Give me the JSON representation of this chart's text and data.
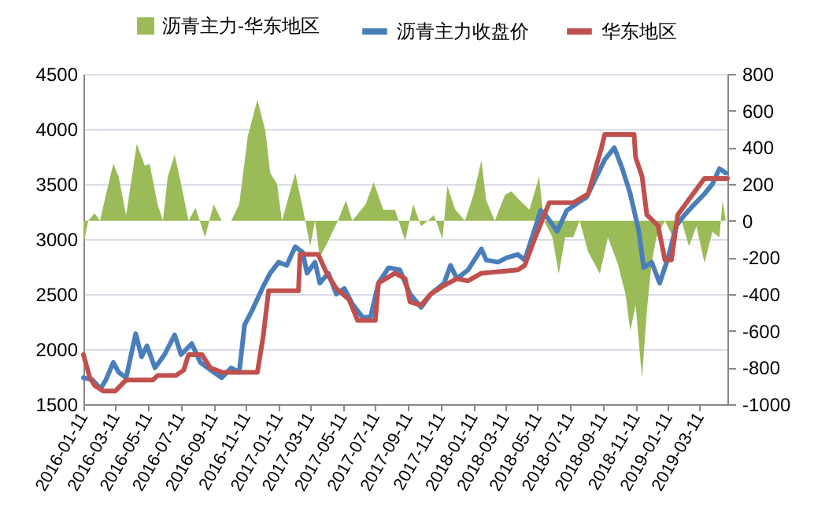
{
  "chart_data": {
    "type": "line",
    "legend": "top",
    "grid": "y",
    "xlim": [
      "2016-01-11",
      "2019-05-02"
    ],
    "xticks": [
      "2016-01-11",
      "2016-03-11",
      "2016-05-11",
      "2016-07-11",
      "2016-09-11",
      "2016-11-11",
      "2017-01-11",
      "2017-03-11",
      "2017-05-11",
      "2017-07-11",
      "2017-09-11",
      "2017-11-11",
      "2018-01-11",
      "2018-03-11",
      "2018-05-11",
      "2018-07-11",
      "2018-09-11",
      "2018-11-11",
      "2019-01-11",
      "2019-03-11"
    ],
    "ylim": [
      1500,
      4500
    ],
    "yticks": [
      1500,
      2000,
      2500,
      3000,
      3500,
      4000,
      4500
    ],
    "y2lim": [
      -1000,
      800
    ],
    "y2ticks": [
      -1000,
      -800,
      -600,
      -400,
      -200,
      0,
      200,
      400,
      600,
      800
    ],
    "series": [
      {
        "name": "沥青主力-华东地区",
        "type": "area",
        "axis": "y2",
        "color": "#9bbb59",
        "x": [
          "2016-01-11",
          "2016-01-20",
          "2016-02-01",
          "2016-02-11",
          "2016-02-22",
          "2016-03-07",
          "2016-03-17",
          "2016-03-31",
          "2016-04-20",
          "2016-05-05",
          "2016-05-14",
          "2016-05-29",
          "2016-06-08",
          "2016-06-17",
          "2016-06-30",
          "2016-07-12",
          "2016-07-26",
          "2016-08-08",
          "2016-08-26",
          "2016-09-11",
          "2016-09-26",
          "2016-10-14",
          "2016-10-29",
          "2016-11-14",
          "2016-12-02",
          "2016-12-17",
          "2016-12-26",
          "2017-01-08",
          "2017-01-17",
          "2017-02-11",
          "2017-02-25",
          "2017-03-11",
          "2017-03-20",
          "2017-03-29",
          "2017-04-14",
          "2017-05-02",
          "2017-05-17",
          "2017-05-29",
          "2017-06-23",
          "2017-07-08",
          "2017-07-26",
          "2017-08-17",
          "2017-09-05",
          "2017-09-20",
          "2017-10-05",
          "2017-10-29",
          "2017-11-14",
          "2017-11-23",
          "2017-12-08",
          "2017-12-26",
          "2018-01-11",
          "2018-01-26",
          "2018-02-04",
          "2018-02-20",
          "2018-03-11",
          "2018-03-23",
          "2018-04-08",
          "2018-04-26",
          "2018-05-14",
          "2018-05-23",
          "2018-06-08",
          "2018-06-20",
          "2018-07-02",
          "2018-07-17",
          "2018-07-29",
          "2018-08-14",
          "2018-09-05",
          "2018-09-20",
          "2018-10-08",
          "2018-10-23",
          "2018-11-01",
          "2018-11-11",
          "2018-11-23",
          "2018-12-02",
          "2018-12-11",
          "2018-12-20",
          "2019-01-05",
          "2019-01-20",
          "2019-02-05",
          "2019-02-19",
          "2019-03-05",
          "2019-03-20",
          "2019-04-04",
          "2019-04-17",
          "2019-04-23",
          "2019-04-29"
        ],
        "values": [
          -130,
          0,
          40,
          0,
          140,
          310,
          240,
          30,
          420,
          300,
          310,
          90,
          0,
          240,
          360,
          200,
          0,
          70,
          -90,
          90,
          0,
          0,
          90,
          460,
          660,
          490,
          260,
          200,
          0,
          260,
          70,
          -140,
          0,
          -200,
          -110,
          0,
          110,
          0,
          90,
          210,
          60,
          60,
          -110,
          90,
          -30,
          30,
          -100,
          190,
          60,
          0,
          140,
          330,
          110,
          0,
          140,
          160,
          110,
          60,
          240,
          0,
          -90,
          -290,
          -90,
          -90,
          0,
          -170,
          -290,
          -90,
          -230,
          -400,
          -600,
          -460,
          -860,
          -490,
          -230,
          -90,
          0,
          -90,
          0,
          -140,
          -30,
          -230,
          -60,
          -90,
          110,
          0
        ]
      },
      {
        "name": "沥青主力收盘价",
        "color": "#4a7ebb",
        "x": [
          "2016-01-11",
          "2016-01-28",
          "2016-02-12",
          "2016-02-22",
          "2016-03-07",
          "2016-03-17",
          "2016-03-31",
          "2016-04-18",
          "2016-04-29",
          "2016-05-09",
          "2016-05-24",
          "2016-06-11",
          "2016-06-30",
          "2016-07-12",
          "2016-08-01",
          "2016-08-17",
          "2016-09-11",
          "2016-09-26",
          "2016-10-14",
          "2016-10-29",
          "2016-11-08",
          "2016-11-23",
          "2016-12-13",
          "2016-12-26",
          "2017-01-11",
          "2017-01-26",
          "2017-02-11",
          "2017-02-25",
          "2017-03-05",
          "2017-03-20",
          "2017-03-29",
          "2017-04-14",
          "2017-04-29",
          "2017-05-14",
          "2017-05-29",
          "2017-06-17",
          "2017-07-02",
          "2017-07-17",
          "2017-08-05",
          "2017-08-26",
          "2017-09-14",
          "2017-10-05",
          "2017-10-23",
          "2017-11-17",
          "2017-11-29",
          "2017-12-11",
          "2018-01-01",
          "2018-01-26",
          "2018-02-04",
          "2018-02-26",
          "2018-03-14",
          "2018-04-04",
          "2018-04-17",
          "2018-05-02",
          "2018-05-17",
          "2018-05-26",
          "2018-06-17",
          "2018-07-05",
          "2018-07-26",
          "2018-08-11",
          "2018-08-26",
          "2018-09-14",
          "2018-10-02",
          "2018-10-17",
          "2018-11-01",
          "2018-11-17",
          "2018-11-26",
          "2018-12-11",
          "2018-12-26",
          "2019-01-11",
          "2019-01-26",
          "2019-02-11",
          "2019-02-28",
          "2019-03-20",
          "2019-04-04",
          "2019-04-17",
          "2019-04-29"
        ],
        "values": [
          1740,
          1720,
          1640,
          1720,
          1880,
          1790,
          1740,
          2140,
          1930,
          2030,
          1830,
          1950,
          2130,
          1950,
          2050,
          1880,
          1790,
          1740,
          1830,
          1790,
          2220,
          2360,
          2570,
          2690,
          2790,
          2760,
          2930,
          2880,
          2690,
          2790,
          2600,
          2690,
          2500,
          2550,
          2410,
          2290,
          2290,
          2600,
          2740,
          2720,
          2500,
          2380,
          2500,
          2600,
          2760,
          2640,
          2720,
          2910,
          2810,
          2790,
          2830,
          2860,
          2810,
          3030,
          3260,
          3220,
          3070,
          3260,
          3330,
          3380,
          3530,
          3720,
          3830,
          3640,
          3410,
          3070,
          2740,
          2790,
          2600,
          2830,
          3120,
          3220,
          3310,
          3410,
          3500,
          3640,
          3600
        ]
      },
      {
        "name": "华东地区",
        "color": "#c0504d",
        "x": [
          "2016-01-11",
          "2016-01-23",
          "2016-02-01",
          "2016-02-17",
          "2016-03-11",
          "2016-03-31",
          "2016-05-20",
          "2016-05-29",
          "2016-07-02",
          "2016-07-17",
          "2016-07-26",
          "2016-08-20",
          "2016-09-05",
          "2016-09-26",
          "2016-12-02",
          "2016-12-13",
          "2016-12-23",
          "2017-02-17",
          "2017-02-20",
          "2017-03-26",
          "2017-04-11",
          "2017-04-29",
          "2017-05-23",
          "2017-06-08",
          "2017-07-11",
          "2017-07-17",
          "2017-08-17",
          "2017-09-05",
          "2017-09-14",
          "2017-10-05",
          "2017-10-23",
          "2017-11-14",
          "2017-12-11",
          "2018-01-01",
          "2018-01-26",
          "2018-04-04",
          "2018-04-17",
          "2018-05-08",
          "2018-06-02",
          "2018-07-17",
          "2018-08-14",
          "2018-09-08",
          "2018-09-14",
          "2018-11-08",
          "2018-11-11",
          "2018-11-23",
          "2018-12-02",
          "2018-12-23",
          "2019-01-05",
          "2019-01-17",
          "2019-01-29",
          "2019-02-19",
          "2019-03-20",
          "2019-05-02"
        ],
        "values": [
          1950,
          1740,
          1670,
          1620,
          1620,
          1720,
          1720,
          1760,
          1760,
          1810,
          1950,
          1950,
          1830,
          1790,
          1790,
          2120,
          2530,
          2530,
          2860,
          2860,
          2690,
          2550,
          2450,
          2260,
          2260,
          2600,
          2690,
          2640,
          2430,
          2400,
          2500,
          2570,
          2640,
          2620,
          2690,
          2720,
          2760,
          3030,
          3330,
          3330,
          3410,
          3830,
          3950,
          3950,
          3740,
          3570,
          3220,
          3120,
          2810,
          2810,
          3220,
          3360,
          3550,
          3550
        ]
      }
    ]
  }
}
